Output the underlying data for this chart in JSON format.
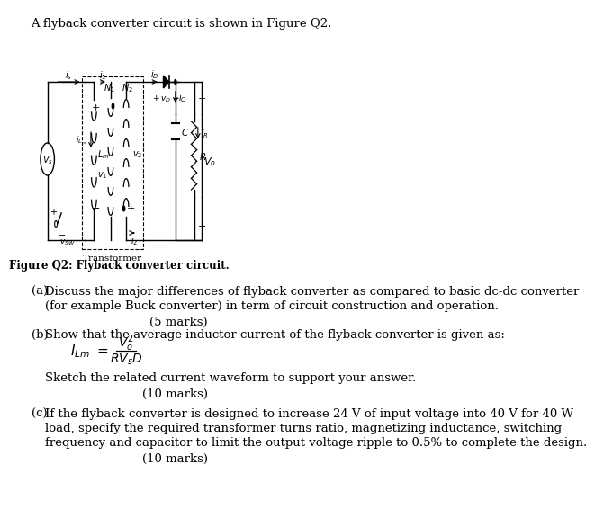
{
  "title_text": "A flyback converter circuit is shown in Figure Q2.",
  "figure_caption": "Figure Q2: Flyback converter circuit.",
  "part_a_label": "(a)",
  "part_a_text1": "Discuss the major differences of flyback converter as compared to basic dc-dc converter",
  "part_a_text2": "(for example Buck converter) in term of circuit construction and operation.",
  "part_a_marks": "(5 marks)",
  "part_b_label": "(b)",
  "part_b_text1": "Show that the average inductor current of the flyback converter is given as:",
  "part_b_text2": "Sketch the related current waveform to support your answer.",
  "part_b_marks": "(10 marks)",
  "part_c_label": "(c)",
  "part_c_text1": "If the flyback converter is designed to increase 24 V of input voltage into 40 V for 40 W",
  "part_c_text2": "load, specify the required transformer turns ratio, magnetizing inductance, switching",
  "part_c_text3": "frequency and capacitor to limit the output voltage ripple to 0.5% to complete the design.",
  "part_c_marks": "(10 marks)",
  "bg_color": "#ffffff",
  "text_color": "#000000",
  "font_size_body": 9.5
}
